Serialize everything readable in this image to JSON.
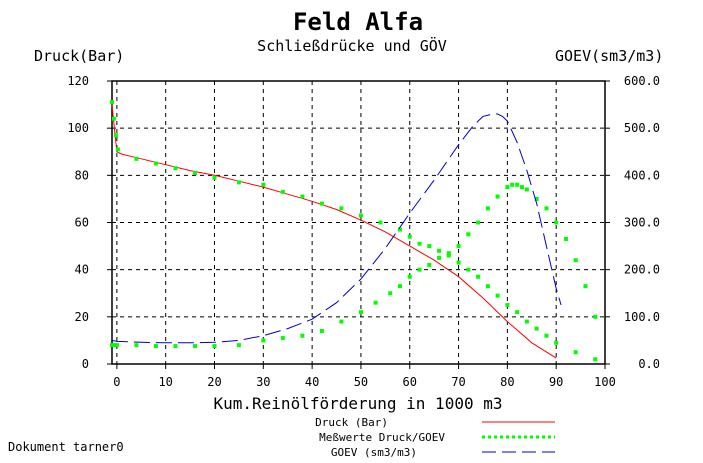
{
  "chart_data": {
    "type": "line",
    "title": "Feld Alfa",
    "subtitle": "Schließdrücke und GÖV",
    "xlabel": "Kum.Reinölförderung in 1000 m3",
    "ylabel_left": "Druck(Bar)",
    "ylabel_right": "GOEV(sm3/m3)",
    "xlim": [
      -1,
      100
    ],
    "ylim_left": [
      0,
      120
    ],
    "ylim_right": [
      0,
      600
    ],
    "x_ticks": [
      "0",
      "10",
      "20",
      "30",
      "40",
      "50",
      "60",
      "70",
      "80",
      "90",
      "100"
    ],
    "x_tick_values": [
      0,
      10,
      20,
      30,
      40,
      50,
      60,
      70,
      80,
      90,
      100
    ],
    "y_ticks_left": [
      "0",
      "20",
      "40",
      "60",
      "80",
      "100",
      "120"
    ],
    "y_tick_values_left": [
      0,
      20,
      40,
      60,
      80,
      100,
      120
    ],
    "y_ticks_right": [
      "0.0",
      "100.0",
      "200.0",
      "300.0",
      "400.0",
      "500.0",
      "600.0"
    ],
    "y_tick_values_right": [
      0,
      100,
      200,
      300,
      400,
      500,
      600
    ],
    "grid": true,
    "legend_position": "bottom-right",
    "series": [
      {
        "name": "Druck (Bar)",
        "axis": "left",
        "style": "line",
        "color": "#ff0000",
        "x": [
          -1,
          -0.5,
          0,
          1,
          5,
          10,
          15,
          20,
          25,
          30,
          35,
          40,
          45,
          50,
          55,
          60,
          65,
          70,
          75,
          80,
          85,
          90
        ],
        "y": [
          110,
          100,
          90,
          89,
          87,
          84.5,
          82,
          80,
          77.5,
          75,
          72,
          69,
          65.5,
          61,
          56,
          50,
          44,
          37,
          28,
          18,
          9,
          2.5
        ]
      },
      {
        "name": "Meßwerte Druck/GOEV",
        "axis": "left",
        "style": "dots",
        "color": "#00ff00",
        "x": [
          -1,
          -0.6,
          -0.2,
          0.2,
          4,
          8,
          12,
          16,
          20,
          25,
          30,
          34,
          38,
          42,
          46,
          50,
          54,
          58,
          60,
          62,
          64,
          66,
          68,
          70,
          72,
          74,
          76,
          78,
          80,
          82,
          84,
          86,
          88,
          90,
          94,
          98
        ],
        "y": [
          111,
          104,
          97,
          91,
          87,
          85,
          83,
          81,
          79,
          77,
          76,
          73,
          71,
          68,
          66,
          63,
          60,
          57,
          54,
          51,
          50,
          48,
          46,
          43,
          40,
          37,
          33,
          29,
          25,
          22,
          18,
          15,
          12,
          9,
          5,
          2
        ]
      },
      {
        "name": "Meßwerte Druck/GOEV",
        "axis": "right",
        "style": "dots",
        "color": "#00ff00",
        "x": [
          -1,
          -0.5,
          0,
          4,
          8,
          12,
          16,
          20,
          25,
          30,
          34,
          38,
          42,
          46,
          50,
          53,
          56,
          58,
          60,
          62,
          64,
          66,
          68,
          70,
          72,
          74,
          76,
          78,
          80,
          81,
          82,
          83,
          84,
          86,
          88,
          90,
          92,
          94,
          96,
          98
        ],
        "y": [
          40,
          40,
          40,
          40,
          38,
          38,
          38,
          38,
          40,
          50,
          55,
          60,
          70,
          90,
          110,
          130,
          150,
          165,
          185,
          200,
          210,
          225,
          235,
          250,
          275,
          300,
          330,
          355,
          375,
          380,
          380,
          375,
          370,
          350,
          330,
          300,
          265,
          220,
          165,
          100
        ]
      },
      {
        "name": "GOEV (sm3/m3)",
        "axis": "right",
        "style": "dash",
        "color": "#0000cc",
        "x": [
          -1,
          0,
          5,
          10,
          15,
          20,
          25,
          30,
          35,
          40,
          45,
          50,
          55,
          60,
          65,
          70,
          73,
          75,
          77,
          78,
          79,
          80,
          82,
          84,
          86,
          88,
          90,
          91
        ],
        "y": [
          50,
          48,
          46,
          45,
          45,
          46,
          50,
          60,
          75,
          95,
          130,
          180,
          245,
          320,
          390,
          465,
          505,
          525,
          530,
          530,
          525,
          515,
          470,
          410,
          340,
          250,
          160,
          125
        ]
      }
    ]
  },
  "footer": {
    "document_label": "Dokument tarner0"
  }
}
